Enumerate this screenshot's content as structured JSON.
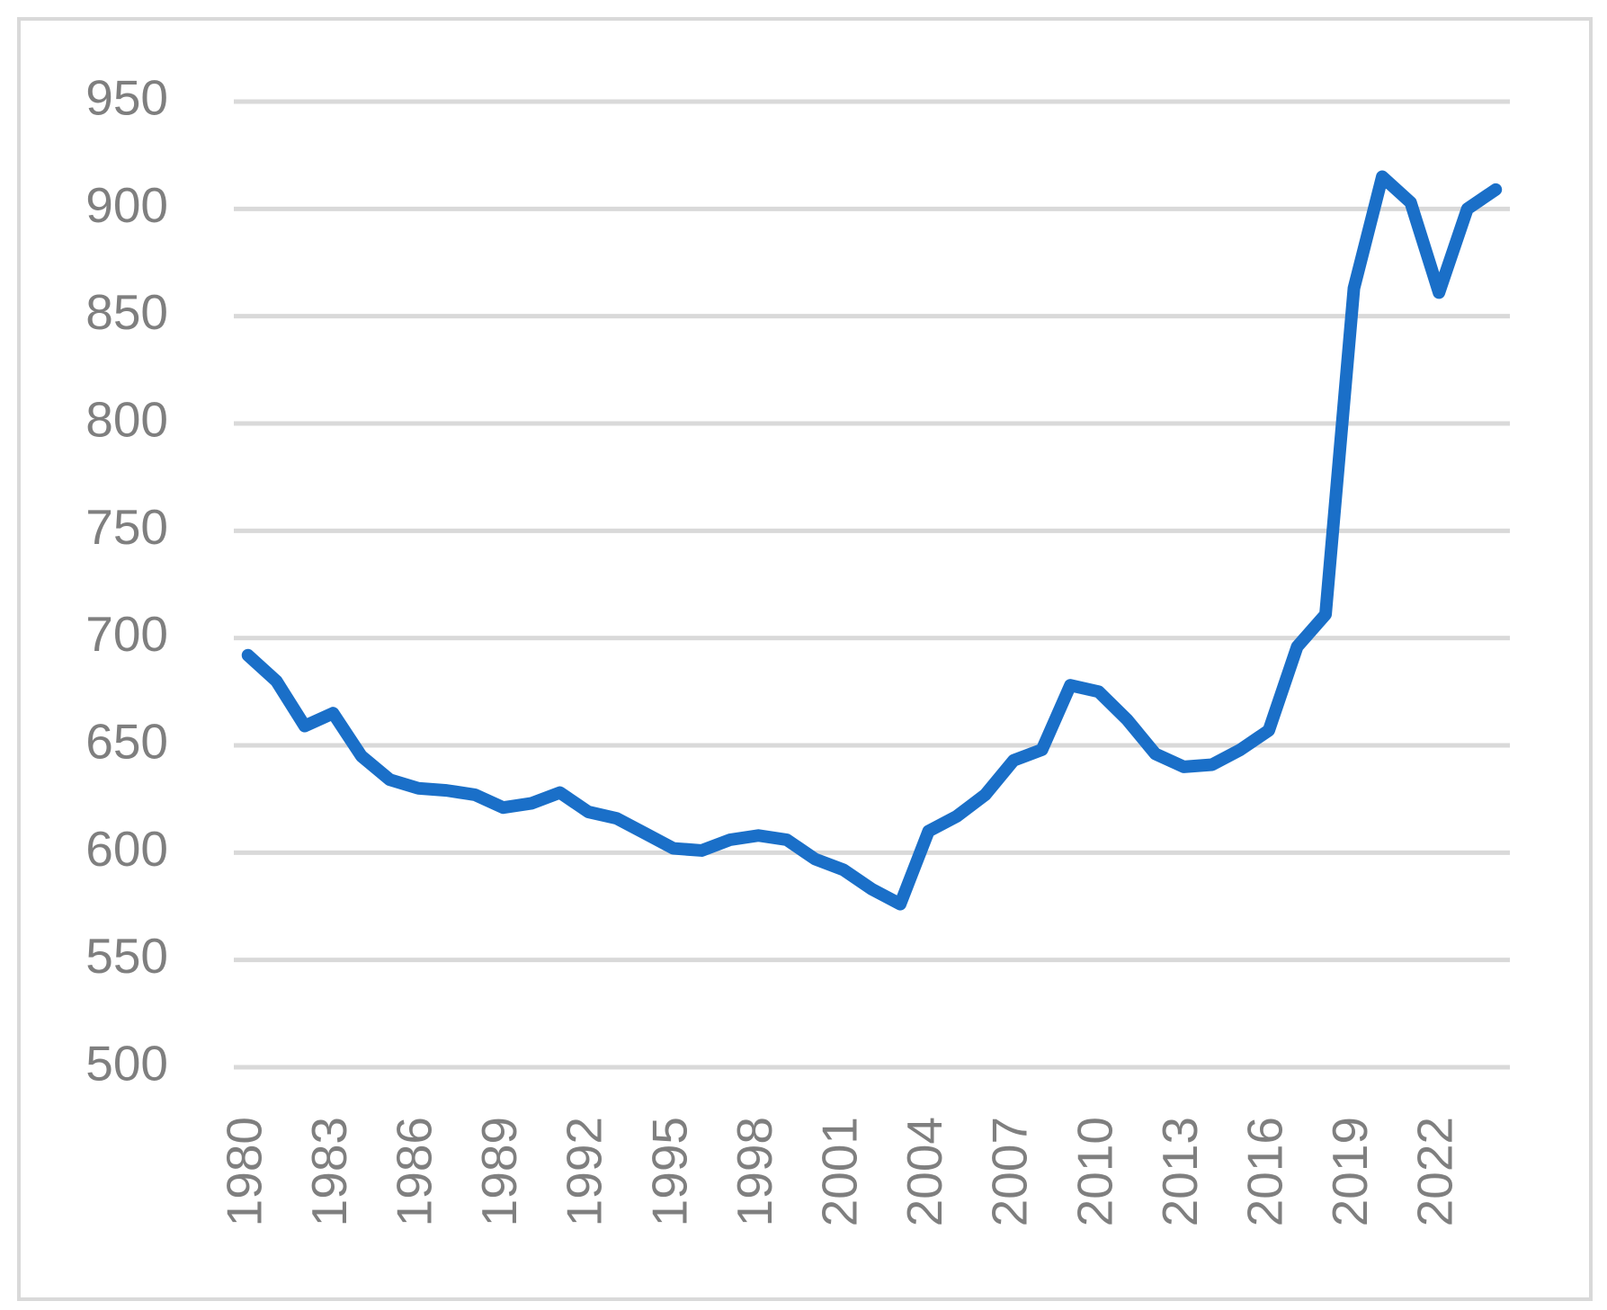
{
  "chart_data": {
    "type": "line",
    "x": [
      1980,
      1981,
      1982,
      1983,
      1984,
      1985,
      1986,
      1987,
      1988,
      1989,
      1990,
      1991,
      1992,
      1993,
      1994,
      1995,
      1996,
      1997,
      1998,
      1999,
      2000,
      2001,
      2002,
      2003,
      2004,
      2005,
      2006,
      2007,
      2008,
      2009,
      2010,
      2011,
      2012,
      2013,
      2014,
      2015,
      2016,
      2017,
      2018,
      2019,
      2020,
      2021,
      2022,
      2023,
      2024
    ],
    "series": [
      {
        "color": "#1a6fc8",
        "values": [
          692,
          680,
          659,
          665,
          645,
          634,
          630,
          629,
          627,
          621,
          623,
          628,
          619,
          616,
          609,
          602,
          601,
          606,
          608,
          606,
          597,
          592,
          583,
          576,
          610,
          617,
          627,
          643,
          648,
          678,
          675,
          662,
          646,
          640,
          641,
          648,
          657,
          696,
          711,
          863,
          915,
          903,
          861,
          900,
          909
        ]
      }
    ],
    "xlim": [
      1979.5,
      2024.5
    ],
    "xticks": [
      1980,
      1983,
      1986,
      1989,
      1992,
      1995,
      1998,
      2001,
      2004,
      2007,
      2010,
      2013,
      2016,
      2019,
      2022
    ],
    "ylim": [
      500,
      950
    ],
    "yticks": [
      500,
      550,
      600,
      650,
      700,
      750,
      800,
      850,
      900,
      950
    ],
    "grid": true
  }
}
